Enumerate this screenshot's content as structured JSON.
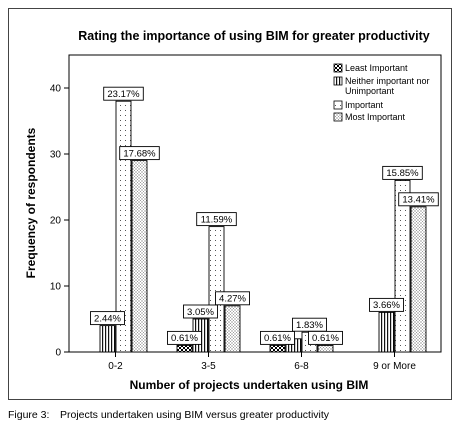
{
  "chart_data": {
    "type": "bar",
    "title": "Rating the importance of using BIM for greater productivity",
    "xlabel": "Number of projects undertaken using BIM",
    "ylabel": "Frequency of respondents",
    "ylim": [
      0,
      45
    ],
    "yticks": [
      0,
      10,
      20,
      30,
      40
    ],
    "categories": [
      "0-2",
      "3-5",
      "6-8",
      "9 or More"
    ],
    "legend_position": "top-right",
    "grid": false,
    "series": [
      {
        "name": "Least Important",
        "pattern": "checker",
        "values": [
          0,
          1,
          1,
          0
        ],
        "labels": [
          "",
          "0.61%",
          "0.61%",
          ""
        ]
      },
      {
        "name": "Neither important nor Unimportant",
        "pattern": "vlines",
        "values": [
          4,
          5,
          2,
          6
        ],
        "labels": [
          "2.44%",
          "3.05%",
          "",
          "3.66%"
        ]
      },
      {
        "name": "Important",
        "pattern": "dots-sparse",
        "values": [
          38,
          19,
          3,
          26
        ],
        "labels": [
          "23.17%",
          "11.59%",
          "1.83%",
          "15.85%"
        ]
      },
      {
        "name": "Most Important",
        "pattern": "dots-dense",
        "values": [
          29,
          7,
          1,
          22
        ],
        "labels": [
          "17.68%",
          "4.27%",
          "0.61%",
          "13.41%"
        ]
      }
    ]
  },
  "caption": {
    "number": "Figure 3:",
    "text": "Projects undertaken using BIM versus greater productivity"
  }
}
